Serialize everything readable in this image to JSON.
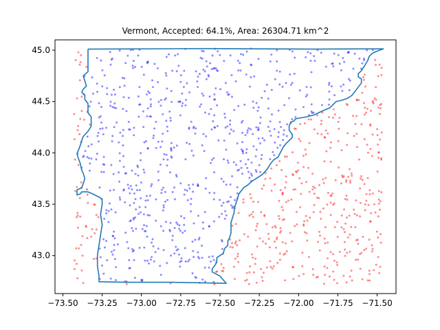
{
  "chart_data": {
    "type": "scatter",
    "title": "Vermont, Accepted: 64.1%, Area: 26304.71 km^2",
    "xlabel": "",
    "ylabel": "",
    "xlim": [
      -73.55,
      -71.38
    ],
    "ylim": [
      42.63,
      45.1
    ],
    "xticks": [
      -73.5,
      -73.25,
      -73.0,
      -72.75,
      -72.5,
      -72.25,
      -72.0,
      -71.75,
      -71.5
    ],
    "yticks": [
      43.0,
      43.5,
      44.0,
      44.5,
      45.0
    ],
    "xtick_labels": [
      "−73.50",
      "−73.25",
      "−73.00",
      "−72.75",
      "−72.50",
      "−72.25",
      "−72.00",
      "−71.75",
      "−71.50"
    ],
    "ytick_labels": [
      "43.0",
      "43.5",
      "44.0",
      "44.5",
      "45.0"
    ],
    "accepted_fraction": 0.641,
    "area_km2": 26304.71,
    "sample_count": 1200,
    "sample_bounds": {
      "x": [
        -73.43,
        -71.47
      ],
      "y": [
        42.72,
        45.02
      ]
    },
    "series": [
      {
        "name": "accepted",
        "color": "#0000ff",
        "opacity": 0.45
      },
      {
        "name": "rejected",
        "color": "#ff0000",
        "opacity": 0.45
      },
      {
        "name": "boundary",
        "color": "#1f77b4"
      }
    ],
    "boundary": [
      [
        -73.34,
        45.01
      ],
      [
        -72.6,
        45.015
      ],
      [
        -71.9,
        45.01
      ],
      [
        -71.46,
        45.013
      ],
      [
        -71.5,
        44.99
      ],
      [
        -71.53,
        44.97
      ],
      [
        -71.55,
        44.94
      ],
      [
        -71.56,
        44.9
      ],
      [
        -71.575,
        44.86
      ],
      [
        -71.6,
        44.8
      ],
      [
        -71.62,
        44.77
      ],
      [
        -71.62,
        44.74
      ],
      [
        -71.6,
        44.72
      ],
      [
        -71.6,
        44.68
      ],
      [
        -71.62,
        44.64
      ],
      [
        -71.64,
        44.6
      ],
      [
        -71.66,
        44.56
      ],
      [
        -71.69,
        44.53
      ],
      [
        -71.73,
        44.51
      ],
      [
        -71.76,
        44.5
      ],
      [
        -71.8,
        44.44
      ],
      [
        -71.86,
        44.4
      ],
      [
        -71.9,
        44.37
      ],
      [
        -71.95,
        44.35
      ],
      [
        -71.99,
        44.34
      ],
      [
        -72.02,
        44.33
      ],
      [
        -72.03,
        44.31
      ],
      [
        -72.05,
        44.3
      ],
      [
        -72.06,
        44.26
      ],
      [
        -72.06,
        44.22
      ],
      [
        -72.04,
        44.18
      ],
      [
        -72.04,
        44.15
      ],
      [
        -72.08,
        44.09
      ],
      [
        -72.1,
        44.05
      ],
      [
        -72.12,
        43.99
      ],
      [
        -72.13,
        43.96
      ],
      [
        -72.16,
        43.93
      ],
      [
        -72.18,
        43.89
      ],
      [
        -72.2,
        43.84
      ],
      [
        -72.23,
        43.79
      ],
      [
        -72.27,
        43.75
      ],
      [
        -72.3,
        43.72
      ],
      [
        -72.32,
        43.69
      ],
      [
        -72.35,
        43.66
      ],
      [
        -72.38,
        43.6
      ],
      [
        -72.39,
        43.55
      ],
      [
        -72.4,
        43.5
      ],
      [
        -72.41,
        43.46
      ],
      [
        -72.41,
        43.42
      ],
      [
        -72.42,
        43.37
      ],
      [
        -72.43,
        43.32
      ],
      [
        -72.43,
        43.27
      ],
      [
        -72.43,
        43.22
      ],
      [
        -72.44,
        43.17
      ],
      [
        -72.45,
        43.14
      ],
      [
        -72.45,
        43.1
      ],
      [
        -72.47,
        43.07
      ],
      [
        -72.48,
        43.02
      ],
      [
        -72.52,
        42.98
      ],
      [
        -72.52,
        42.94
      ],
      [
        -72.53,
        42.91
      ],
      [
        -72.55,
        42.87
      ],
      [
        -72.55,
        42.84
      ],
      [
        -72.5,
        42.8
      ],
      [
        -72.46,
        42.73
      ],
      [
        -72.8,
        42.74
      ],
      [
        -73.1,
        42.74
      ],
      [
        -73.27,
        42.745
      ],
      [
        -73.27,
        42.8
      ],
      [
        -73.28,
        42.9
      ],
      [
        -73.28,
        43.0
      ],
      [
        -73.27,
        43.1
      ],
      [
        -73.26,
        43.2
      ],
      [
        -73.25,
        43.3
      ],
      [
        -73.26,
        43.4
      ],
      [
        -73.25,
        43.5
      ],
      [
        -73.25,
        43.55
      ],
      [
        -73.27,
        43.57
      ],
      [
        -73.31,
        43.6
      ],
      [
        -73.34,
        43.62
      ],
      [
        -73.38,
        43.62
      ],
      [
        -73.39,
        43.6
      ],
      [
        -73.41,
        43.59
      ],
      [
        -73.41,
        43.64
      ],
      [
        -73.38,
        43.66
      ],
      [
        -73.37,
        43.7
      ],
      [
        -73.36,
        43.75
      ],
      [
        -73.37,
        43.8
      ],
      [
        -73.38,
        43.83
      ],
      [
        -73.39,
        43.9
      ],
      [
        -73.4,
        43.94
      ],
      [
        -73.41,
        43.99
      ],
      [
        -73.4,
        44.03
      ],
      [
        -73.39,
        44.07
      ],
      [
        -73.38,
        44.12
      ],
      [
        -73.37,
        44.16
      ],
      [
        -73.34,
        44.21
      ],
      [
        -73.32,
        44.26
      ],
      [
        -73.32,
        44.31
      ],
      [
        -73.32,
        44.35
      ],
      [
        -73.34,
        44.39
      ],
      [
        -73.34,
        44.44
      ],
      [
        -73.34,
        44.48
      ],
      [
        -73.36,
        44.52
      ],
      [
        -73.36,
        44.56
      ],
      [
        -73.38,
        44.59
      ],
      [
        -73.37,
        44.62
      ],
      [
        -73.35,
        44.65
      ],
      [
        -73.36,
        44.7
      ],
      [
        -73.37,
        44.75
      ],
      [
        -73.34,
        44.79
      ],
      [
        -73.34,
        44.83
      ],
      [
        -73.34,
        44.87
      ],
      [
        -73.34,
        44.92
      ],
      [
        -73.34,
        45.01
      ]
    ]
  }
}
